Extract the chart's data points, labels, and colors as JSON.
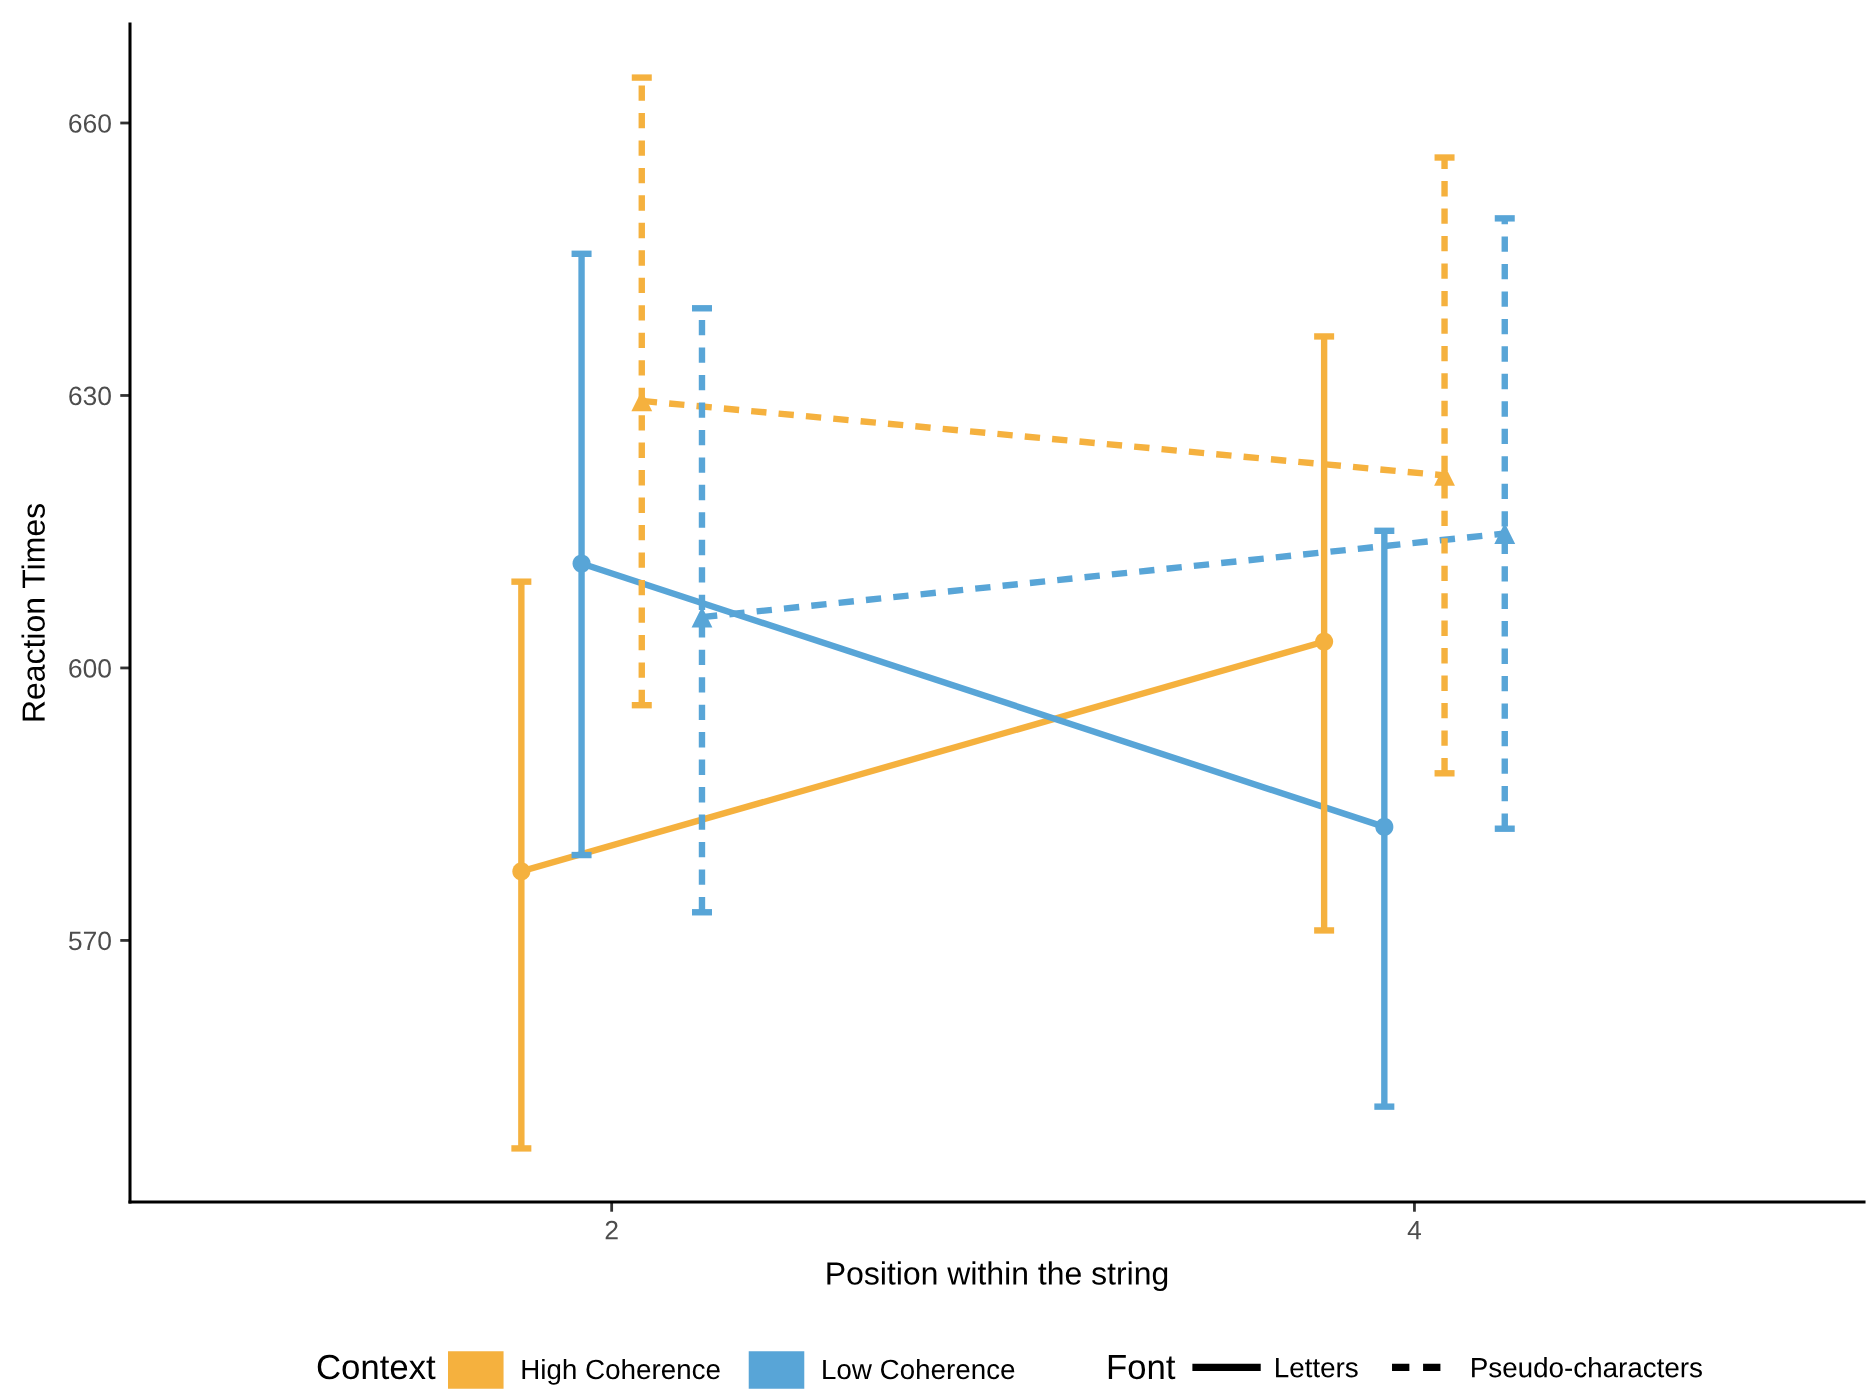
{
  "chart_data": {
    "type": "line",
    "xlabel": "Position within the string",
    "ylabel": "Reaction Times",
    "legend_title": "Context",
    "legend": "bottom",
    "grid": false,
    "xlim": [
      0.8,
      5.12
    ],
    "xticks": [
      2,
      4
    ],
    "ylim": [
      541.2,
      670.9
    ],
    "yticks": [
      570,
      600,
      630,
      660
    ],
    "series": [
      {
        "name": "High Coherence",
        "color": "#f5b13e",
        "line_style": "solid",
        "marker": "circle",
        "x": [
          1.775,
          3.775
        ],
        "values": [
          577.6,
          602.9
        ],
        "errors": [
          [
            547.1,
            609.5
          ],
          [
            571.1,
            636.5
          ]
        ]
      },
      {
        "name": "Low Coherence",
        "color": "#58a5d7",
        "line_style": "solid",
        "marker": "circle",
        "x": [
          1.925,
          3.925
        ],
        "values": [
          611.5,
          582.5
        ],
        "errors": [
          [
            579.4,
            645.6
          ],
          [
            551.7,
            615.1
          ]
        ]
      },
      {
        "color": "#f5b13e",
        "line_style": "dashed",
        "marker": "triangle",
        "x": [
          2.075,
          4.075
        ],
        "values": [
          629.4,
          621.2
        ],
        "errors": [
          [
            595.9,
            665.0
          ],
          [
            588.4,
            656.2
          ]
        ]
      },
      {
        "color": "#58a5d7",
        "line_style": "dashed",
        "marker": "triangle",
        "x": [
          2.225,
          4.225
        ],
        "values": [
          605.6,
          614.8
        ],
        "errors": [
          [
            573.1,
            639.6
          ],
          [
            582.3,
            649.5
          ]
        ]
      }
    ],
    "annotations": [
      "Font",
      "Letters",
      "Pseudo-characters"
    ]
  }
}
